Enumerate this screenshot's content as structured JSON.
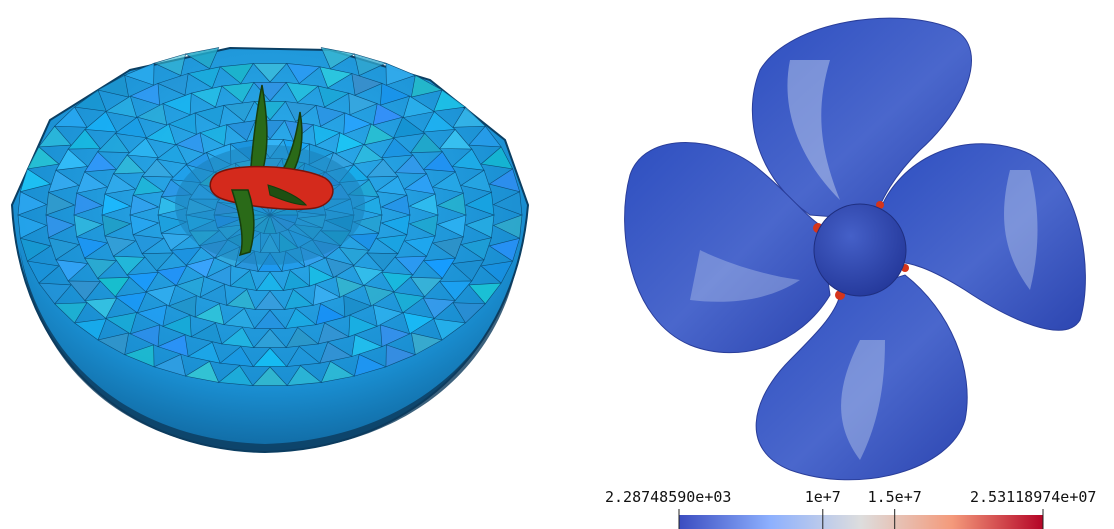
{
  "left_figure": {
    "mesh_color": "#1a9be0",
    "mesh_edge_color": "#0b4d78",
    "propeller_color": "#d42a1c",
    "blade_edge_color": "#1f5a14"
  },
  "right_figure": {
    "blade_color": "#3a55c4",
    "hub_color": "#3348b0",
    "highlight_color": "#c9d6f0",
    "hotspot_color": "#d5341a"
  },
  "colorbar": {
    "min_label": "2.28748590e+03",
    "tick_1": "1e+7",
    "tick_2": "1.5e+7",
    "max_label": "2.53118974e+07",
    "min_value": 2287.4859,
    "max_value": 25311897.4,
    "tick_values": [
      10000000,
      15000000
    ],
    "colors": [
      "#3b4cc0",
      "#8db0fe",
      "#dddddd",
      "#f49a7b",
      "#b40426"
    ]
  }
}
